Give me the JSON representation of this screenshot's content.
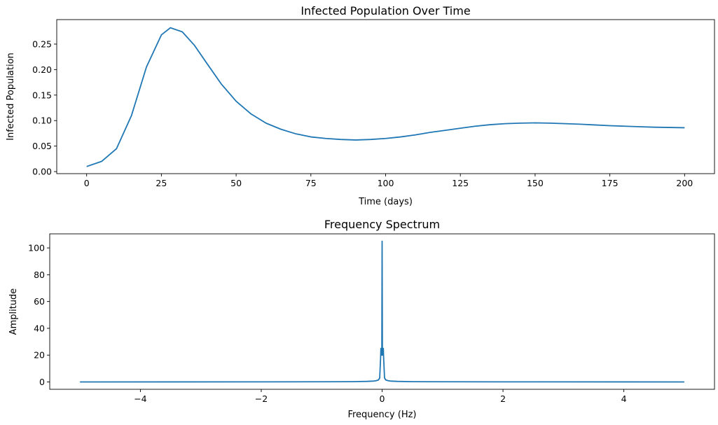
{
  "chart_data": [
    {
      "type": "line",
      "title": "Infected Population Over Time",
      "xlabel": "Time (days)",
      "ylabel": "Infected Population",
      "xlim": [
        -10,
        210
      ],
      "ylim": [
        -0.004,
        0.298
      ],
      "xticks": [
        0,
        25,
        50,
        75,
        100,
        125,
        150,
        175,
        200
      ],
      "xtick_labels": [
        "0",
        "25",
        "50",
        "75",
        "100",
        "125",
        "150",
        "175",
        "200"
      ],
      "yticks": [
        0,
        0.05,
        0.1,
        0.15,
        0.2,
        0.25
      ],
      "ytick_labels": [
        "0.00",
        "0.05",
        "0.10",
        "0.15",
        "0.20",
        "0.25"
      ],
      "grid": false,
      "color": "#1f77b4",
      "series": [
        {
          "x": [
            0,
            5,
            10,
            15,
            20,
            25,
            28,
            32,
            36,
            40,
            45,
            50,
            55,
            60,
            65,
            70,
            75,
            80,
            85,
            90,
            95,
            100,
            105,
            110,
            115,
            120,
            125,
            130,
            135,
            140,
            145,
            150,
            155,
            160,
            165,
            170,
            175,
            180,
            185,
            190,
            195,
            200
          ],
          "y": [
            0.01,
            0.02,
            0.045,
            0.11,
            0.205,
            0.268,
            0.282,
            0.274,
            0.248,
            0.214,
            0.172,
            0.138,
            0.113,
            0.095,
            0.083,
            0.074,
            0.068,
            0.065,
            0.063,
            0.062,
            0.063,
            0.065,
            0.068,
            0.072,
            0.077,
            0.081,
            0.085,
            0.089,
            0.092,
            0.094,
            0.095,
            0.0955,
            0.095,
            0.094,
            0.093,
            0.0915,
            0.09,
            0.089,
            0.088,
            0.087,
            0.0865,
            0.086
          ]
        }
      ]
    },
    {
      "type": "line",
      "title": "Frequency Spectrum",
      "xlabel": "Frequency (Hz)",
      "ylabel": "Amplitude",
      "xlim": [
        -5.5,
        5.5
      ],
      "ylim": [
        -5.5,
        110.5
      ],
      "xticks": [
        -4,
        -2,
        0,
        2,
        4
      ],
      "xtick_labels": [
        "−4",
        "−2",
        "0",
        "2",
        "4"
      ],
      "yticks": [
        0,
        20,
        40,
        60,
        80,
        100
      ],
      "ytick_labels": [
        "0",
        "20",
        "40",
        "60",
        "80",
        "100"
      ],
      "grid": false,
      "color": "#1f77b4",
      "series": [
        {
          "x": [
            -5,
            -2,
            -1,
            -0.5,
            -0.25,
            -0.15,
            -0.1,
            -0.06,
            -0.04,
            -0.025,
            -0.02,
            -0.015,
            -0.01,
            -0.005,
            0,
            0.005,
            0.01,
            0.015,
            0.02,
            0.025,
            0.04,
            0.06,
            0.1,
            0.15,
            0.25,
            0.5,
            1,
            2,
            5
          ],
          "y": [
            0,
            0.05,
            0.1,
            0.2,
            0.4,
            0.6,
            0.9,
            1.5,
            3,
            18,
            25,
            22,
            25,
            20,
            105,
            20,
            25,
            22,
            25,
            18,
            3,
            1.5,
            0.9,
            0.6,
            0.4,
            0.2,
            0.1,
            0.05,
            0
          ]
        }
      ]
    }
  ]
}
